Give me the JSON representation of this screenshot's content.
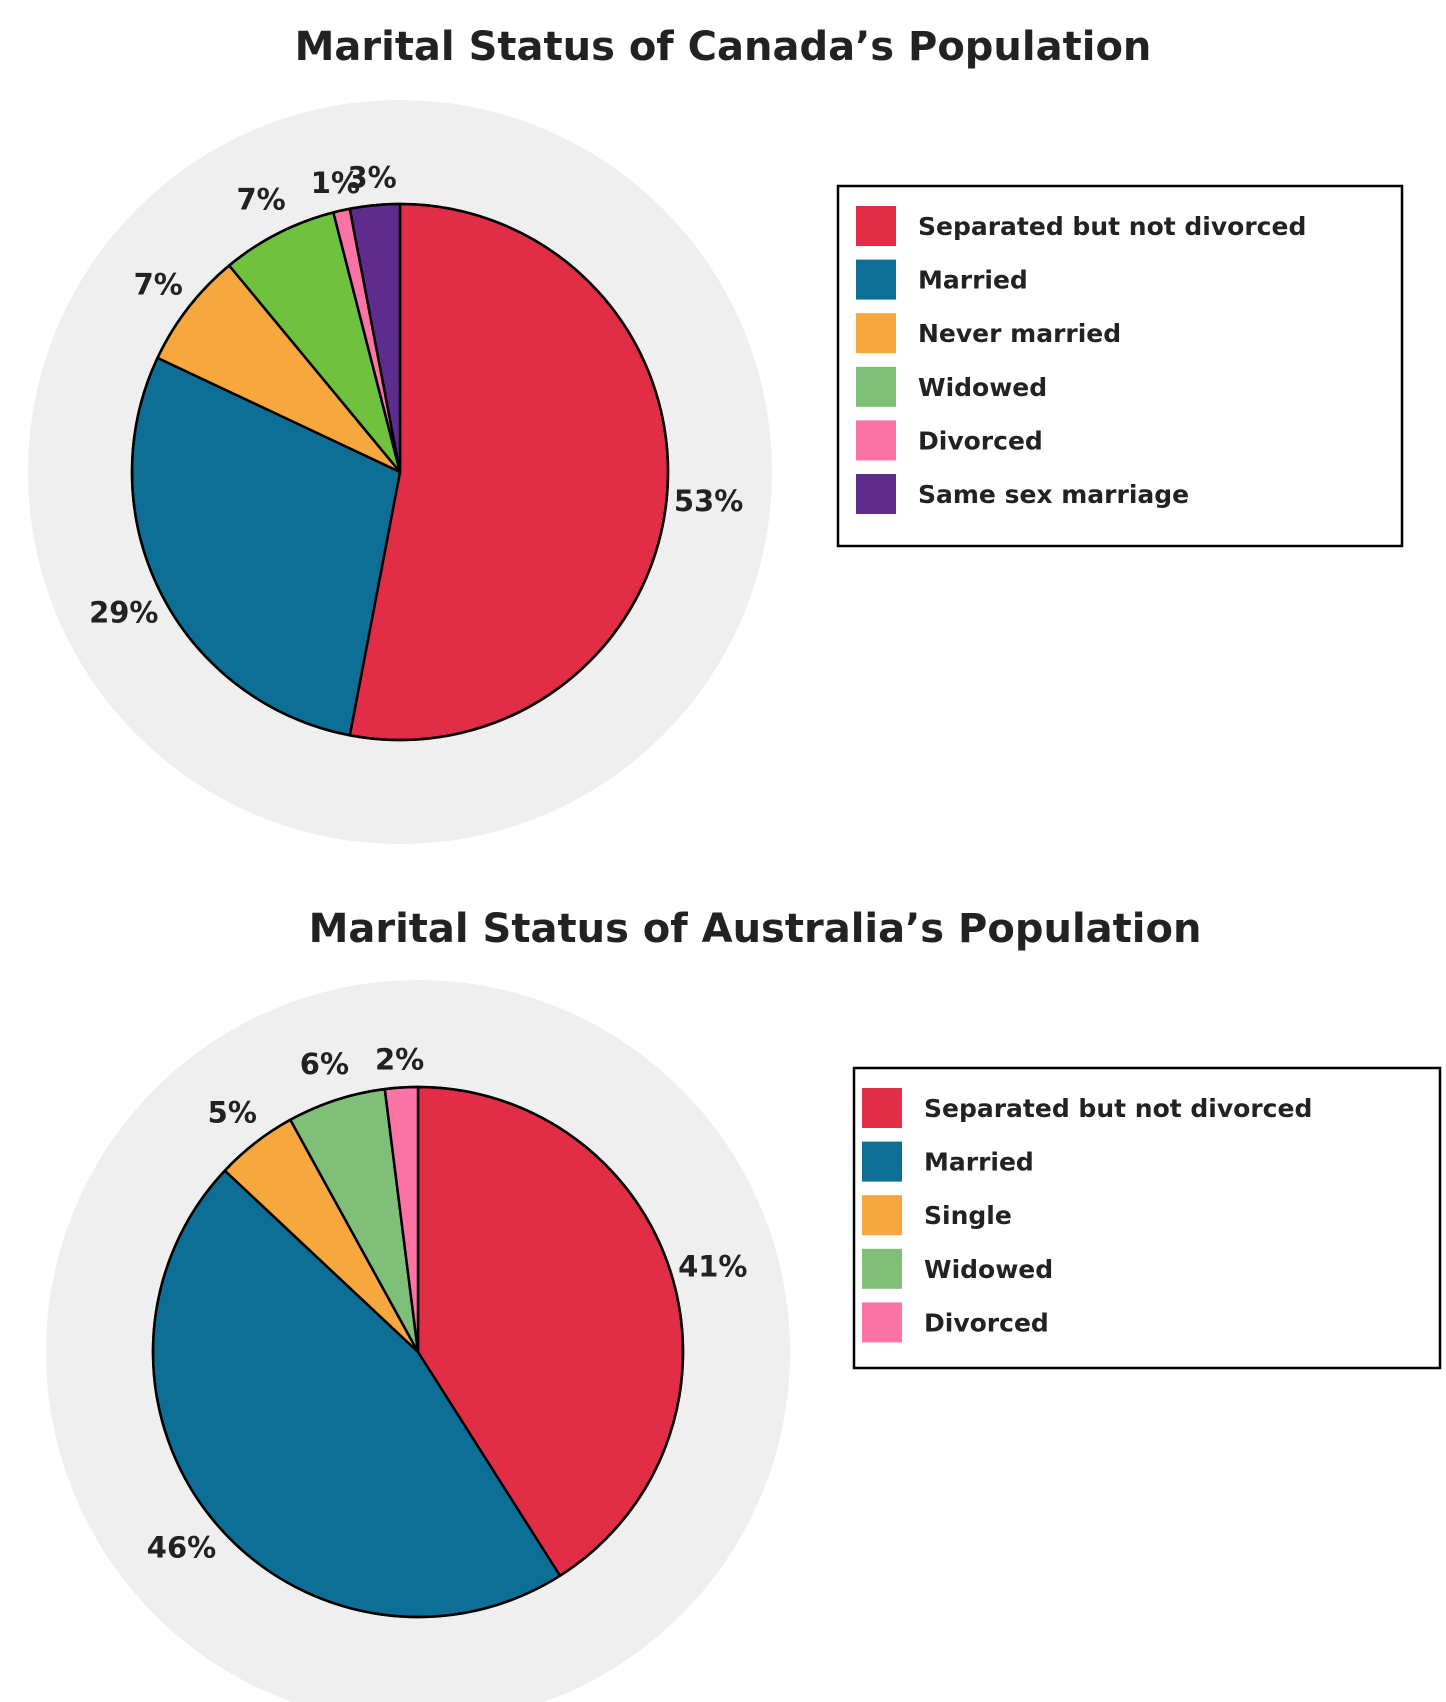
{
  "chart_data": [
    {
      "type": "pie",
      "title": "Marital Status of Canada’s Population",
      "colors": {
        "disc_background": "#efefef"
      },
      "legend_position": "right",
      "slices": [
        {
          "label": "Separated but not divorced",
          "value": 53,
          "value_label": "53%",
          "color": "#e22d47"
        },
        {
          "label": "Married",
          "value": 29,
          "value_label": "29%",
          "color": "#0d6f96"
        },
        {
          "label": "Never married",
          "value": 7,
          "value_label": "7%",
          "color": "#f6a73d"
        },
        {
          "label": "Widowed",
          "value": 7,
          "value_label": "7%",
          "color": "#6fc13e"
        },
        {
          "label": "Divorced",
          "value": 1,
          "value_label": "1%",
          "color": "#fb74a5"
        },
        {
          "label": "Same sex marriage",
          "value": 3,
          "value_label": "3%",
          "color": "#5e2c8c"
        }
      ],
      "legend": [
        {
          "label": "Separated but not divorced",
          "color": "#e22d47"
        },
        {
          "label": "Married",
          "color": "#0d6f96"
        },
        {
          "label": "Never married",
          "color": "#f6a73d"
        },
        {
          "label": "Widowed",
          "color": "#80bf78"
        },
        {
          "label": "Divorced",
          "color": "#fb74a5"
        },
        {
          "label": "Same sex marriage",
          "color": "#5e2c8c"
        }
      ]
    },
    {
      "type": "pie",
      "title": "Marital Status of Australia’s Population",
      "colors": {
        "disc_background": "#efefef"
      },
      "legend_position": "right",
      "slices": [
        {
          "label": "Separated but not divorced",
          "value": 41,
          "value_label": "41%",
          "color": "#e22d47"
        },
        {
          "label": "Married",
          "value": 46,
          "value_label": "46%",
          "color": "#0d6f96"
        },
        {
          "label": "Single",
          "value": 5,
          "value_label": "5%",
          "color": "#f6a73d"
        },
        {
          "label": "Widowed",
          "value": 6,
          "value_label": "6%",
          "color": "#80bf78"
        },
        {
          "label": "Divorced",
          "value": 2,
          "value_label": "2%",
          "color": "#fb74a5"
        }
      ],
      "legend": [
        {
          "label": "Separated but not divorced",
          "color": "#e22d47"
        },
        {
          "label": "Married",
          "color": "#0d6f96"
        },
        {
          "label": "Single",
          "color": "#f6a73d"
        },
        {
          "label": "Widowed",
          "color": "#80bf78"
        },
        {
          "label": "Divorced",
          "color": "#fb74a5"
        }
      ]
    }
  ]
}
